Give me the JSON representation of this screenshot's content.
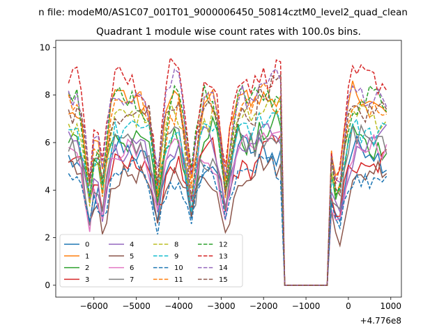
{
  "chart_data": {
    "type": "line",
    "suptitle": "n file: modeM0/AS1C07_001T01_9000006450_50814cztM0_level2_quad_clean",
    "title": "Quadrant 1 module wise count rates with 100.0s bins.",
    "xlabel": "",
    "ylabel": "",
    "x_offset_label": "+4.776e8",
    "xlim": [
      -6900,
      1250
    ],
    "ylim": [
      -0.5,
      10.3
    ],
    "xticks": [
      -6000,
      -5000,
      -4000,
      -3000,
      -2000,
      -1000,
      0,
      1000
    ],
    "xtick_labels": [
      "−6000",
      "−5000",
      "−4000",
      "−3000",
      "−2000",
      "−1000",
      "0",
      "1000"
    ],
    "yticks": [
      0,
      2,
      4,
      6,
      8,
      10
    ],
    "ytick_labels": [
      "0",
      "2",
      "4",
      "6",
      "8",
      "10"
    ],
    "grid": false,
    "legend_position": "lower-left",
    "legend_columns": 4,
    "series": [
      {
        "name": "0",
        "color": "#1f77b4",
        "dash": "solid",
        "base": 5.4,
        "amp": 0.9
      },
      {
        "name": "1",
        "color": "#ff7f0e",
        "dash": "solid",
        "base": 7.8,
        "amp": 0.9
      },
      {
        "name": "2",
        "color": "#2ca02c",
        "dash": "solid",
        "base": 6.3,
        "amp": 1.0
      },
      {
        "name": "3",
        "color": "#d62728",
        "dash": "solid",
        "base": 5.3,
        "amp": 0.9
      },
      {
        "name": "4",
        "color": "#9467bd",
        "dash": "solid",
        "base": 5.9,
        "amp": 0.9
      },
      {
        "name": "5",
        "color": "#8c564b",
        "dash": "solid",
        "base": 4.6,
        "amp": 0.8
      },
      {
        "name": "6",
        "color": "#e377c2",
        "dash": "solid",
        "base": 5.6,
        "amp": 0.9
      },
      {
        "name": "7",
        "color": "#7f7f7f",
        "dash": "solid",
        "base": 5.9,
        "amp": 1.0
      },
      {
        "name": "8",
        "color": "#bcbd22",
        "dash": "dashed",
        "base": 7.1,
        "amp": 0.9
      },
      {
        "name": "9",
        "color": "#17becf",
        "dash": "dashed",
        "base": 6.5,
        "amp": 0.9
      },
      {
        "name": "10",
        "color": "#1f77b4",
        "dash": "dashed",
        "base": 4.6,
        "amp": 0.8
      },
      {
        "name": "11",
        "color": "#ff7f0e",
        "dash": "dashed",
        "base": 7.6,
        "amp": 1.0
      },
      {
        "name": "12",
        "color": "#2ca02c",
        "dash": "dashed",
        "base": 7.8,
        "amp": 1.0
      },
      {
        "name": "13",
        "color": "#d62728",
        "dash": "dashed",
        "base": 8.7,
        "amp": 1.0
      },
      {
        "name": "14",
        "color": "#9467bd",
        "dash": "dashed",
        "base": 8.1,
        "amp": 1.0
      },
      {
        "name": "15",
        "color": "#8c564b",
        "dash": "dashed",
        "base": 7.4,
        "amp": 1.0
      }
    ],
    "time_range": [
      -6600,
      900
    ],
    "bin_width": 100,
    "gap_range": [
      -1500,
      -500
    ],
    "dip_times": [
      -6100,
      -5800,
      -4500,
      -3700,
      -2900,
      -200
    ]
  }
}
